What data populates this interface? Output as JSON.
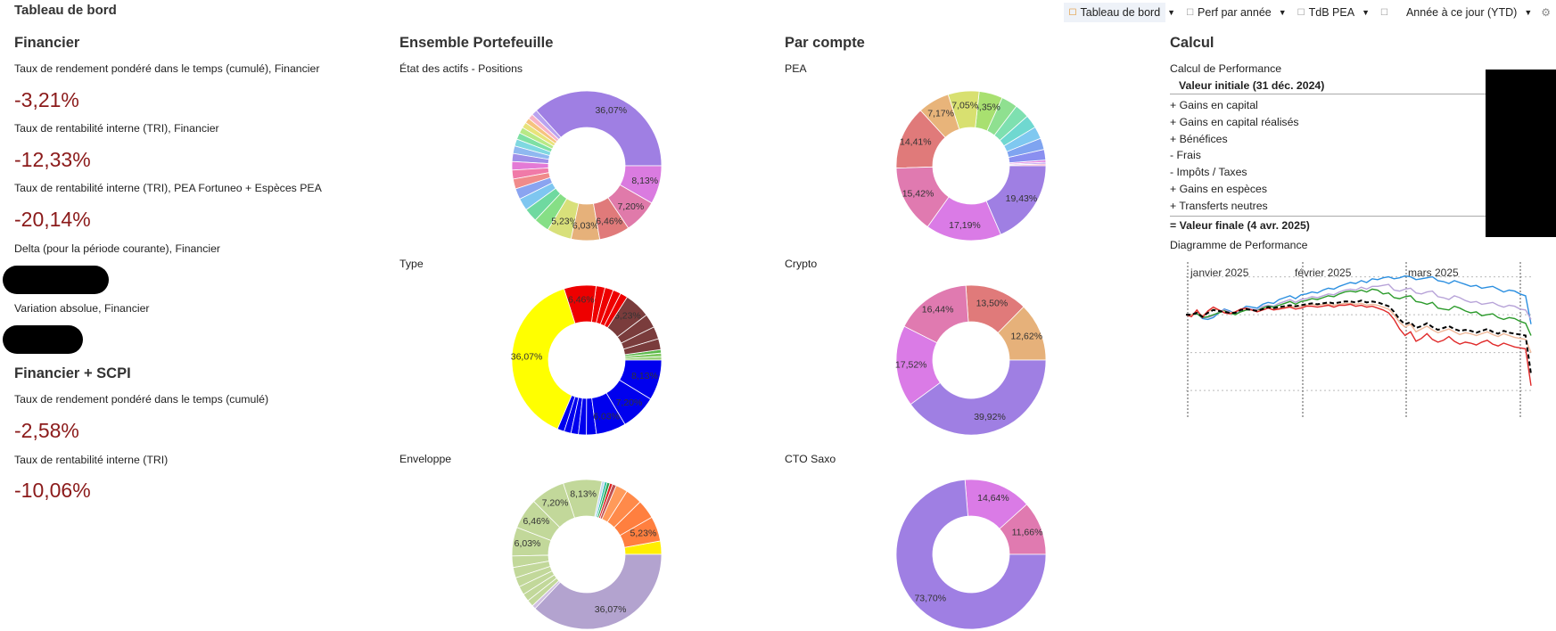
{
  "header": {
    "title": "Tableau de bord"
  },
  "toolbar": {
    "tabs": [
      {
        "label": "Tableau de bord"
      },
      {
        "label": "Perf par année"
      },
      {
        "label": "TdB PEA"
      }
    ],
    "period": "Année à ce jour (YTD)"
  },
  "financier": {
    "title": "Financier",
    "twr_label": "Taux de rendement pondéré dans le temps (cumulé), Financier",
    "twr_value": "-3,21%",
    "irr_label": "Taux de rentabilité interne (TRI), Financier",
    "irr_value": "-12,33%",
    "irr_pea_label": "Taux de rentabilité interne (TRI), PEA Fortuneo + Espèces PEA",
    "irr_pea_value": "-20,14%",
    "delta_label": "Delta (pour la période courante), Financier",
    "abs_label": "Variation absolue, Financier"
  },
  "financier_scpi": {
    "title": "Financier + SCPI",
    "twr_label": "Taux de rendement pondéré dans le temps (cumulé)",
    "twr_value": "-2,58%",
    "irr_label": "Taux de rentabilité interne (TRI)",
    "irr_value": "-10,06%"
  },
  "ensemble": {
    "title": "Ensemble Portefeuille",
    "positions_label": "État des actifs - Positions",
    "type_label": "Type",
    "enveloppe_label": "Enveloppe"
  },
  "par_compte": {
    "title": "Par compte",
    "pea_label": "PEA",
    "crypto_label": "Crypto",
    "cto_label": "CTO Saxo"
  },
  "calcul": {
    "title": "Calcul",
    "subtitle": "Calcul de Performance",
    "initial": "Valeur initiale (31 déc. 2024)",
    "rows": [
      "+ Gains en capital",
      "+ Gains en capital réalisés",
      "+ Bénéfices",
      "-  Frais",
      "-  Impôts / Taxes",
      "+ Gains en espèces",
      "+ Transferts neutres"
    ],
    "final": "= Valeur finale (4 avr. 2025)",
    "chart_title": "Diagramme de Performance",
    "months": [
      "janvier 2025",
      "février 2025",
      "mars 2025"
    ]
  },
  "chart_data": [
    {
      "type": "pie",
      "title": "État des actifs - Positions",
      "slices": [
        {
          "value": 36.07,
          "label": "36,07%",
          "color": "#9f7fe3"
        },
        {
          "value": 1.2,
          "label": "",
          "color": "#b9a3f0"
        },
        {
          "value": 1.1,
          "label": "",
          "color": "#f7b3c6"
        },
        {
          "value": 1.1,
          "label": "",
          "color": "#f6c37e"
        },
        {
          "value": 1.2,
          "label": "",
          "color": "#e8e37a"
        },
        {
          "value": 1.3,
          "label": "",
          "color": "#b8e986"
        },
        {
          "value": 1.4,
          "label": "",
          "color": "#7ee0a3"
        },
        {
          "value": 1.5,
          "label": "",
          "color": "#7fd8e0"
        },
        {
          "value": 1.6,
          "label": "",
          "color": "#8fb8f0"
        },
        {
          "value": 1.7,
          "label": "",
          "color": "#9f8fe8"
        },
        {
          "value": 1.8,
          "label": "",
          "color": "#e47ad6"
        },
        {
          "value": 1.9,
          "label": "",
          "color": "#f07aa8"
        },
        {
          "value": 2.1,
          "label": "",
          "color": "#f08b8b"
        },
        {
          "value": 2.3,
          "label": "",
          "color": "#8aa4f0"
        },
        {
          "value": 2.6,
          "label": "",
          "color": "#7ec6f0"
        },
        {
          "value": 2.9,
          "label": "",
          "color": "#6fd9a0"
        },
        {
          "value": 3.3,
          "label": "",
          "color": "#86df86"
        },
        {
          "value": 5.23,
          "label": "5,23%",
          "color": "#d8e07a"
        },
        {
          "value": 6.03,
          "label": "6,03%",
          "color": "#e6b17a"
        },
        {
          "value": 6.46,
          "label": "6,46%",
          "color": "#e07a7a"
        },
        {
          "value": 7.2,
          "label": "7,20%",
          "color": "#e07aaa"
        },
        {
          "value": 8.13,
          "label": "8,13%",
          "color": "#da7be0"
        }
      ]
    },
    {
      "type": "pie",
      "title": "Type",
      "slices": [
        {
          "value": 0.7,
          "label": "",
          "color": "#9ad27a"
        },
        {
          "value": 0.7,
          "label": "",
          "color": "#7ec860"
        },
        {
          "value": 0.7,
          "label": "",
          "color": "#5ab84a"
        },
        {
          "value": 2.2,
          "label": "",
          "color": "#7a3c3c"
        },
        {
          "value": 2.5,
          "label": "",
          "color": "#7a3c3c"
        },
        {
          "value": 2.8,
          "label": "",
          "color": "#7a3c3c"
        },
        {
          "value": 5.23,
          "label": "5,23%",
          "color": "#7a3c3c"
        },
        {
          "value": 1.5,
          "label": "",
          "color": "#ee0000"
        },
        {
          "value": 1.6,
          "label": "",
          "color": "#ee0000"
        },
        {
          "value": 1.7,
          "label": "",
          "color": "#ee0000"
        },
        {
          "value": 1.8,
          "label": "",
          "color": "#ee0000"
        },
        {
          "value": 6.46,
          "label": "6,46%",
          "color": "#ee0000"
        },
        {
          "value": 36.07,
          "label": "36,07%",
          "color": "#ffff00"
        },
        {
          "value": 1.4,
          "label": "",
          "color": "#0000ee"
        },
        {
          "value": 1.4,
          "label": "",
          "color": "#0000ee"
        },
        {
          "value": 1.5,
          "label": "",
          "color": "#0000ee"
        },
        {
          "value": 1.6,
          "label": "",
          "color": "#0000ee"
        },
        {
          "value": 2.0,
          "label": "",
          "color": "#0000ee"
        },
        {
          "value": 6.03,
          "label": "6,03%",
          "color": "#0000ee"
        },
        {
          "value": 7.2,
          "label": "7,20%",
          "color": "#0000ee"
        },
        {
          "value": 8.13,
          "label": "8,13%",
          "color": "#0000ee"
        }
      ]
    },
    {
      "type": "pie",
      "title": "Enveloppe",
      "slices": [
        {
          "value": 2.8,
          "label": "",
          "color": "#ffee00"
        },
        {
          "value": 5.23,
          "label": "5,23%",
          "color": "#ff7f3f"
        },
        {
          "value": 4.0,
          "label": "",
          "color": "#ff7f3f"
        },
        {
          "value": 3.5,
          "label": "",
          "color": "#ff8a4a"
        },
        {
          "value": 2.5,
          "label": "",
          "color": "#ff9a5a"
        },
        {
          "value": 0.8,
          "label": "",
          "color": "#c05050"
        },
        {
          "value": 0.6,
          "label": "",
          "color": "#e02020"
        },
        {
          "value": 0.6,
          "label": "",
          "color": "#30a050"
        },
        {
          "value": 0.5,
          "label": "",
          "color": "#20c0a0"
        },
        {
          "value": 0.6,
          "label": "",
          "color": "#c0d8f0"
        },
        {
          "value": 8.13,
          "label": "8,13%",
          "color": "#c2d89a"
        },
        {
          "value": 7.2,
          "label": "7,20%",
          "color": "#c2d89a"
        },
        {
          "value": 6.46,
          "label": "6,46%",
          "color": "#c2d89a"
        },
        {
          "value": 6.03,
          "label": "6,03%",
          "color": "#c2d89a"
        },
        {
          "value": 2.4,
          "label": "",
          "color": "#c2d89a"
        },
        {
          "value": 2.2,
          "label": "",
          "color": "#c2d89a"
        },
        {
          "value": 2.0,
          "label": "",
          "color": "#c2d89a"
        },
        {
          "value": 1.8,
          "label": "",
          "color": "#c2d89a"
        },
        {
          "value": 1.6,
          "label": "",
          "color": "#c2d89a"
        },
        {
          "value": 1.4,
          "label": "",
          "color": "#c2d89a"
        },
        {
          "value": 0.8,
          "label": "",
          "color": "#d0c0e0"
        },
        {
          "value": 36.07,
          "label": "36,07%",
          "color": "#b3a3cf"
        }
      ]
    },
    {
      "type": "pie",
      "title": "PEA",
      "slices": [
        {
          "value": 0.4,
          "label": "",
          "color": "#f3a0c0"
        },
        {
          "value": 0.4,
          "label": "",
          "color": "#c0a0f0"
        },
        {
          "value": 0.5,
          "label": "",
          "color": "#e080e0"
        },
        {
          "value": 2.4,
          "label": "",
          "color": "#8a8ff0"
        },
        {
          "value": 2.6,
          "label": "",
          "color": "#7fa4f0"
        },
        {
          "value": 2.8,
          "label": "",
          "color": "#7fc8f0"
        },
        {
          "value": 3.0,
          "label": "",
          "color": "#6fd8d0"
        },
        {
          "value": 3.3,
          "label": "",
          "color": "#7ee0b0"
        },
        {
          "value": 3.7,
          "label": "",
          "color": "#8fe090"
        },
        {
          "value": 5.35,
          "label": "5,35%",
          "color": "#a8e070"
        },
        {
          "value": 7.05,
          "label": "7,05%",
          "color": "#d8e070"
        },
        {
          "value": 7.17,
          "label": "7,17%",
          "color": "#e8b47a"
        },
        {
          "value": 14.41,
          "label": "14,41%",
          "color": "#e07a7a"
        },
        {
          "value": 15.42,
          "label": "15,42%",
          "color": "#e07ab0"
        },
        {
          "value": 17.19,
          "label": "17,19%",
          "color": "#da7be6"
        },
        {
          "value": 19.43,
          "label": "19,43%",
          "color": "#9f7fe3"
        }
      ]
    },
    {
      "type": "pie",
      "title": "Crypto",
      "slices": [
        {
          "value": 12.62,
          "label": "12,62%",
          "color": "#e6b17a"
        },
        {
          "value": 13.5,
          "label": "13,50%",
          "color": "#e07a7a"
        },
        {
          "value": 16.44,
          "label": "16,44%",
          "color": "#e07ab0"
        },
        {
          "value": 17.52,
          "label": "17,52%",
          "color": "#da7be6"
        },
        {
          "value": 39.92,
          "label": "39,92%",
          "color": "#9f7fe3"
        }
      ]
    },
    {
      "type": "pie",
      "title": "CTO Saxo",
      "slices": [
        {
          "value": 11.66,
          "label": "11,66%",
          "color": "#e07ab0"
        },
        {
          "value": 14.64,
          "label": "14,64%",
          "color": "#da7be6"
        },
        {
          "value": 73.7,
          "label": "73,70%",
          "color": "#9f7fe3"
        }
      ]
    },
    {
      "type": "line",
      "title": "Diagramme de Performance",
      "x_labels": [
        "janvier 2025",
        "février 2025",
        "mars 2025"
      ],
      "ylim": [
        -11,
        5
      ],
      "series": [
        {
          "name": "blue",
          "color": "#2b8fe0",
          "dash": false,
          "values": [
            0,
            0,
            0.2,
            -0.4,
            -0.5,
            -0.3,
            0.2,
            0.6,
            0.4,
            0.1,
            0.5,
            0.9,
            0.8,
            0.7,
            1.1,
            1.3,
            1.2,
            1.6,
            1.8,
            2.0,
            1.7,
            2.1,
            2.2,
            2.4,
            2.3,
            2.6,
            2.8,
            2.7,
            3.0,
            3.2,
            3.4,
            3.3,
            3.6,
            3.4,
            3.8,
            3.7,
            3.9,
            4.0,
            3.8,
            3.9,
            4.1,
            4.0,
            3.7,
            3.8,
            3.9,
            4.0,
            3.6,
            3.5,
            3.3,
            3.6,
            3.4,
            3.2,
            3.0,
            3.1,
            2.8,
            2.9,
            3.0,
            2.7,
            2.4,
            2.6,
            2.5,
            2.2,
            2.0,
            -1.0
          ]
        },
        {
          "name": "lavender",
          "color": "#b7a3d8",
          "dash": false,
          "values": [
            0,
            0,
            0.1,
            -0.3,
            -0.3,
            -0.1,
            0.3,
            0.5,
            0.3,
            0.1,
            0.4,
            0.7,
            0.6,
            0.5,
            0.9,
            1.0,
            0.9,
            1.2,
            1.4,
            1.6,
            1.3,
            1.6,
            1.7,
            1.9,
            1.8,
            2.0,
            2.2,
            2.1,
            2.4,
            2.6,
            2.7,
            2.6,
            2.9,
            2.7,
            3.0,
            3.0,
            3.1,
            3.2,
            2.6,
            2.5,
            2.7,
            2.8,
            2.3,
            2.2,
            2.4,
            2.5,
            1.9,
            1.8,
            1.6,
            2.0,
            1.8,
            1.5,
            1.3,
            1.4,
            1.1,
            1.2,
            1.3,
            1.0,
            0.8,
            1.0,
            0.9,
            0.6,
            0.5,
            -0.5
          ]
        },
        {
          "name": "green",
          "color": "#2a9a2a",
          "dash": false,
          "values": [
            0,
            0,
            0.1,
            -0.3,
            -0.2,
            0,
            0.2,
            0.4,
            0.2,
            0,
            0.3,
            0.5,
            0.5,
            0.4,
            0.7,
            0.9,
            0.8,
            1.0,
            1.2,
            1.4,
            1.1,
            1.4,
            1.5,
            1.7,
            1.6,
            1.8,
            2.0,
            1.9,
            2.2,
            2.4,
            2.5,
            2.4,
            2.6,
            2.4,
            2.7,
            2.6,
            2.2,
            2.3,
            1.8,
            1.7,
            1.9,
            2.0,
            1.4,
            1.3,
            1.1,
            1.3,
            0.7,
            0.6,
            0.5,
            0.9,
            0.7,
            0.4,
            0.2,
            0.3,
            -0.1,
            0,
            0.1,
            -0.3,
            -0.5,
            -0.3,
            -0.4,
            -0.7,
            -0.9,
            -2.2
          ]
        },
        {
          "name": "peach",
          "color": "#f0b89a",
          "dash": false,
          "values": [
            0,
            0,
            0.3,
            -0.1,
            0.3,
            0.6,
            0.5,
            0.3,
            0.2,
            0.3,
            0.5,
            0.6,
            0.5,
            0.4,
            0.5,
            0.7,
            0.6,
            0.7,
            0.8,
            0.9,
            0.8,
            0.9,
            1.0,
            1.1,
            1.0,
            1.1,
            1.1,
            1.0,
            1.1,
            1.2,
            1.2,
            1.1,
            1.2,
            1.0,
            1.1,
            1.0,
            0.8,
            0.6,
            0.0,
            -0.8,
            -1.3,
            -1.0,
            -1.8,
            -1.5,
            -1.2,
            -1.6,
            -1.9,
            -1.7,
            -1.5,
            -1.8,
            -2.1,
            -1.9,
            -2.0,
            -2.2,
            -2.0,
            -1.8,
            -2.1,
            -2.3,
            -2.0,
            -2.2,
            -2.4,
            -2.5,
            -2.6,
            -4.0
          ]
        },
        {
          "name": "red",
          "color": "#e02a2a",
          "dash": false,
          "values": [
            0,
            -0.2,
            0.5,
            -0.3,
            0.4,
            0.8,
            0.5,
            0.2,
            0.1,
            0.3,
            0.6,
            0.7,
            0.5,
            0.3,
            0.5,
            0.7,
            0.5,
            0.6,
            0.7,
            0.8,
            0.6,
            0.7,
            0.9,
            0.9,
            0.8,
            0.9,
            1.0,
            0.8,
            1.0,
            1.0,
            1.1,
            0.9,
            1.0,
            0.8,
            0.9,
            0.7,
            0.5,
            0.2,
            -0.5,
            -1.5,
            -2.2,
            -1.8,
            -2.8,
            -2.5,
            -2.0,
            -2.6,
            -2.9,
            -2.7,
            -2.3,
            -2.8,
            -3.1,
            -2.9,
            -3.0,
            -3.2,
            -2.9,
            -2.7,
            -3.1,
            -3.3,
            -3.0,
            -3.2,
            -3.4,
            -3.5,
            -3.6,
            -7.5
          ]
        },
        {
          "name": "black-dashed",
          "color": "#000000",
          "dash": true,
          "values": [
            0,
            0,
            0.2,
            -0.2,
            0.2,
            0.5,
            0.4,
            0.3,
            0.2,
            0.2,
            0.5,
            0.6,
            0.5,
            0.4,
            0.6,
            0.8,
            0.7,
            0.8,
            0.9,
            1.0,
            0.9,
            1.0,
            1.1,
            1.2,
            1.1,
            1.2,
            1.3,
            1.2,
            1.3,
            1.4,
            1.4,
            1.3,
            1.5,
            1.3,
            1.4,
            1.3,
            1.1,
            0.9,
            0.3,
            -0.5,
            -1.0,
            -0.8,
            -1.4,
            -1.2,
            -0.9,
            -1.3,
            -1.6,
            -1.4,
            -1.2,
            -1.5,
            -1.7,
            -1.6,
            -1.7,
            -1.9,
            -1.7,
            -1.5,
            -1.8,
            -2.0,
            -1.7,
            -1.9,
            -2.0,
            -2.1,
            -2.2,
            -6.3
          ]
        }
      ]
    }
  ]
}
